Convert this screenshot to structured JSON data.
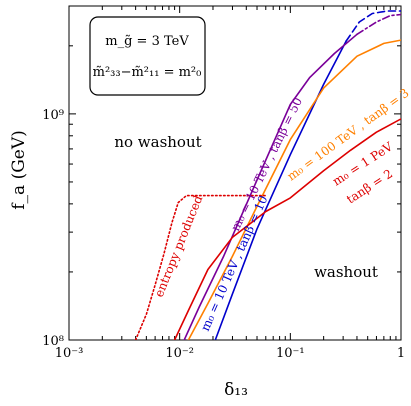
{
  "chart_data": {
    "type": "line",
    "xlabel": "δ₁₃",
    "ylabel": "f_a (GeV)",
    "xscale": "log",
    "yscale": "log",
    "xlim": [
      0.001,
      1
    ],
    "ylim": [
      100000000.0,
      3000000000.0
    ],
    "x_ticks": [
      "10⁻³",
      "10⁻²",
      "10⁻¹",
      "1"
    ],
    "y_ticks": [
      "10⁸",
      "10⁹"
    ],
    "legend_box": {
      "line1": "m_g̃ = 3 TeV",
      "line2": "m̃²₃₃−m̃²₁₁ = m²₀"
    },
    "annotations": {
      "no_washout": "no washout",
      "washout": "washout"
    },
    "series": [
      {
        "label": "m₀ = 10 TeV , tanβ = 10",
        "color": "#0000cc",
        "style": "solid",
        "points": [
          [
            0.021,
            100000000.0
          ],
          [
            0.03,
            160000000.0
          ],
          [
            0.05,
            310000000.0
          ],
          [
            0.1,
            660000000.0
          ],
          [
            0.2,
            1350000000.0
          ],
          [
            0.32,
            2100000000.0
          ]
        ]
      },
      {
        "label": "m₀ = 10 TeV , tanβ = 10 (dashed)",
        "color": "#0000cc",
        "style": "dashed",
        "points": [
          [
            0.32,
            2100000000.0
          ],
          [
            0.42,
            2550000000.0
          ],
          [
            0.55,
            2780000000.0
          ],
          [
            0.75,
            2850000000.0
          ],
          [
            1.0,
            2850000000.0
          ]
        ]
      },
      {
        "label": "m₀ = 10 TeV , tanβ = 50",
        "color": "#7a0099",
        "style": "solid",
        "points": [
          [
            0.011,
            100000000.0
          ],
          [
            0.015,
            140000000.0
          ],
          [
            0.025,
            235000000.0
          ],
          [
            0.05,
            510000000.0
          ],
          [
            0.1,
            1100000000.0
          ],
          [
            0.15,
            1450000000.0
          ],
          [
            0.25,
            1850000000.0
          ],
          [
            0.4,
            2250000000.0
          ]
        ]
      },
      {
        "label": "m₀ = 10 TeV , tanβ = 50 (dash-dot)",
        "color": "#7a0099",
        "style": "dashdot",
        "points": [
          [
            0.4,
            2250000000.0
          ],
          [
            0.6,
            2550000000.0
          ],
          [
            0.8,
            2720000000.0
          ],
          [
            1.0,
            2750000000.0
          ]
        ]
      },
      {
        "label": "m₀ = 100 TeV , tanβ = 3",
        "color": "#ff8000",
        "style": "solid",
        "points": [
          [
            0.012,
            100000000.0
          ],
          [
            0.018,
            145000000.0
          ],
          [
            0.03,
            235000000.0
          ],
          [
            0.05,
            390000000.0
          ],
          [
            0.1,
            770000000.0
          ],
          [
            0.2,
            1300000000.0
          ],
          [
            0.4,
            1800000000.0
          ],
          [
            0.7,
            2050000000.0
          ],
          [
            1.0,
            2120000000.0
          ]
        ]
      },
      {
        "label": "m₀ = 1 PeV tanβ = 2",
        "color": "#dd0000",
        "style": "solid",
        "points": [
          [
            0.009,
            100000000.0
          ],
          [
            0.012,
            135000000.0
          ],
          [
            0.018,
            205000000.0
          ],
          [
            0.03,
            285000000.0
          ],
          [
            0.06,
            370000000.0
          ],
          [
            0.1,
            425000000.0
          ],
          [
            0.2,
            560000000.0
          ],
          [
            0.35,
            690000000.0
          ],
          [
            0.6,
            830000000.0
          ],
          [
            1.0,
            950000000.0
          ]
        ]
      },
      {
        "label": "entropy produced",
        "color": "#dd0000",
        "style": "dotted",
        "points": [
          [
            0.004,
            100000000.0
          ],
          [
            0.005,
            130000000.0
          ],
          [
            0.006,
            175000000.0
          ],
          [
            0.0072,
            240000000.0
          ],
          [
            0.0085,
            330000000.0
          ],
          [
            0.0097,
            405000000.0
          ],
          [
            0.0115,
            435000000.0
          ],
          [
            0.02,
            435000000.0
          ],
          [
            0.04,
            435000000.0
          ],
          [
            0.06,
            435000000.0
          ]
        ]
      }
    ],
    "curve_labels": [
      {
        "text": "m₀ = 10 TeV , tanβ = 10",
        "color": "#0000cc"
      },
      {
        "text": "m₀ = 10 TeV , tanβ = 50",
        "color": "#7a0099"
      },
      {
        "text": "m₀ = 100 TeV , tanβ = 3",
        "color": "#ff8000"
      },
      {
        "text": "m₀ = 1 PeV",
        "color": "#dd0000"
      },
      {
        "text": "tanβ = 2",
        "color": "#dd0000"
      },
      {
        "text": "entropy produced",
        "color": "#dd0000"
      }
    ]
  }
}
